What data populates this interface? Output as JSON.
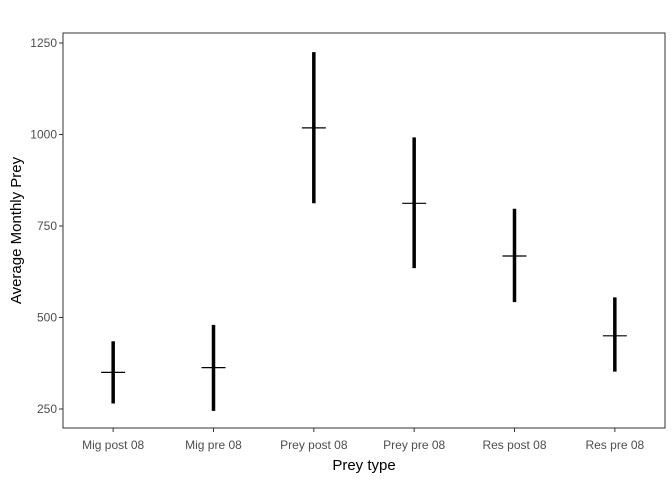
{
  "chart_data": {
    "type": "errorbar",
    "title": "",
    "xlabel": "Prey type",
    "ylabel": "Average Monthly Prey",
    "categories": [
      "Mig post 08",
      "Mig pre 08",
      "Prey post 08",
      "Prey pre 08",
      "Res post 08",
      "Res pre 08"
    ],
    "series": [
      {
        "mean": [
          350,
          363,
          1018,
          812,
          668,
          450
        ],
        "lower": [
          265,
          245,
          812,
          635,
          542,
          352
        ],
        "upper": [
          435,
          480,
          1225,
          992,
          797,
          555
        ]
      }
    ],
    "yticks": [
      250,
      500,
      750,
      1000,
      1250
    ],
    "ylim": [
      200,
      1280
    ],
    "grid": false,
    "legend": "none",
    "colors": {
      "bar": "#000000",
      "panel_border": "#333333",
      "tick_label": "#4d4d4d"
    }
  }
}
